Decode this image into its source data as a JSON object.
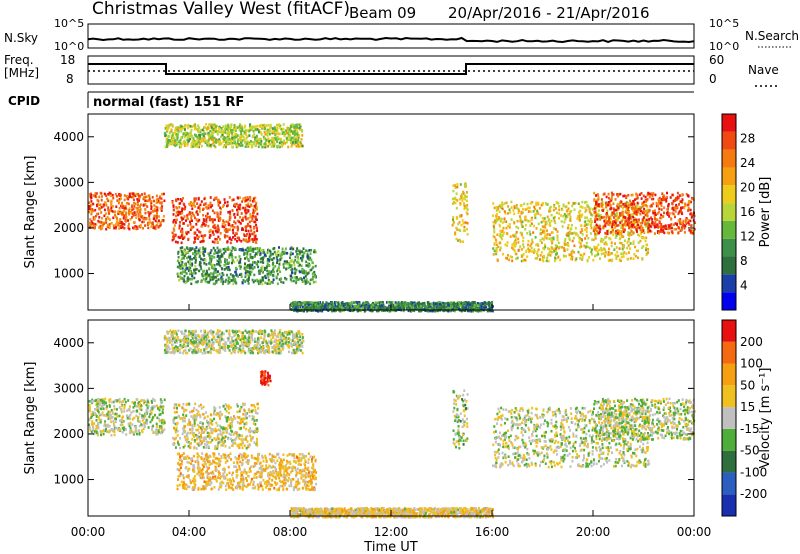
{
  "header": {
    "site": "Christmas Valley West (fitACF)",
    "beam": "Beam 09",
    "dates": "20/Apr/2016 - 21/Apr/2016"
  },
  "top_panels": {
    "nsky_label": "N.Sky",
    "nsky_ticks": [
      "10^5",
      "10^0"
    ],
    "nsearch_label": "N.Search",
    "nsearch_ticks": [
      "10^5",
      "10^0"
    ],
    "freq_label": "Freq.",
    "freq_unit": "[MHz]",
    "freq_ticks": [
      "18",
      "8"
    ],
    "nave_label": "Nave",
    "nave_ticks": [
      "60",
      "0"
    ],
    "cpid_label": "CPID",
    "cpid_text": "normal (fast) 151 RF"
  },
  "colors": {
    "power": [
      "#0000ee",
      "#1a3fa8",
      "#2e6f3d",
      "#3d8f4a",
      "#66b83a",
      "#b8d63a",
      "#f0cc1a",
      "#f5a010",
      "#f57a10",
      "#f04a10",
      "#e81010"
    ],
    "velocity": [
      "#1a2fb0",
      "#2a5fc0",
      "#2e6f3d",
      "#4fae3a",
      "#c0c0c0",
      "#f0c020",
      "#f5a010",
      "#f56a10",
      "#e81010"
    ]
  },
  "chart_data": [
    {
      "type": "heatmap",
      "name": "power",
      "ylabel": "Slant Range [km]",
      "xlabel": "",
      "x_ticks": [
        "00:00",
        "04:00",
        "08:00",
        "12:00",
        "16:00",
        "20:00",
        "00:00"
      ],
      "y_ticks": [
        "1000",
        "2000",
        "3000",
        "4000"
      ],
      "ylim": [
        200,
        4500
      ],
      "colorbar_label": "Power [dB]",
      "colorbar_ticks": [
        "4",
        "8",
        "12",
        "16",
        "20",
        "24",
        "28"
      ],
      "regions": [
        {
          "t": [
            0.0,
            3.0
          ],
          "r": [
            2000,
            2800
          ],
          "level": 0.85
        },
        {
          "t": [
            3.3,
            6.7
          ],
          "r": [
            1700,
            2700
          ],
          "level": 0.9
        },
        {
          "t": [
            3.5,
            9.0
          ],
          "r": [
            800,
            1600
          ],
          "level": 0.3
        },
        {
          "t": [
            3.0,
            8.5
          ],
          "r": [
            3800,
            4300
          ],
          "level": 0.5
        },
        {
          "t": [
            14.4,
            15.0
          ],
          "r": [
            1700,
            3000
          ],
          "level": 0.6
        },
        {
          "t": [
            16.0,
            22.2
          ],
          "r": [
            1300,
            2600
          ],
          "level": 0.6
        },
        {
          "t": [
            20.0,
            24.0
          ],
          "r": [
            1900,
            2800
          ],
          "level": 0.9
        },
        {
          "t": [
            8.0,
            16.0
          ],
          "r": [
            200,
            400
          ],
          "level": 0.25
        }
      ]
    },
    {
      "type": "heatmap",
      "name": "velocity",
      "ylabel": "Slant Range [km]",
      "xlabel": "Time UT",
      "x_ticks": [
        "00:00",
        "04:00",
        "08:00",
        "12:00",
        "16:00",
        "20:00",
        "00:00"
      ],
      "y_ticks": [
        "1000",
        "2000",
        "3000",
        "4000"
      ],
      "ylim": [
        200,
        4500
      ],
      "colorbar_label": "Velocity [m s⁻¹]",
      "colorbar_ticks": [
        "200",
        "100",
        "50",
        "15",
        "-15",
        "-50",
        "-100",
        "-200"
      ],
      "regions": [
        {
          "t": [
            0.0,
            3.0
          ],
          "r": [
            2000,
            2800
          ],
          "level": 0.5
        },
        {
          "t": [
            3.3,
            6.7
          ],
          "r": [
            1700,
            2700
          ],
          "level": 0.55
        },
        {
          "t": [
            3.5,
            9.0
          ],
          "r": [
            800,
            1600
          ],
          "level": 0.65
        },
        {
          "t": [
            6.8,
            7.2
          ],
          "r": [
            3100,
            3400
          ],
          "level": 1.0
        },
        {
          "t": [
            3.0,
            8.5
          ],
          "r": [
            3800,
            4300
          ],
          "level": 0.5
        },
        {
          "t": [
            14.4,
            15.0
          ],
          "r": [
            1700,
            3000
          ],
          "level": 0.45
        },
        {
          "t": [
            16.0,
            22.2
          ],
          "r": [
            1300,
            2600
          ],
          "level": 0.5
        },
        {
          "t": [
            20.0,
            24.0
          ],
          "r": [
            1900,
            2800
          ],
          "level": 0.5
        },
        {
          "t": [
            8.0,
            16.0
          ],
          "r": [
            200,
            400
          ],
          "level": 0.6
        }
      ]
    }
  ]
}
